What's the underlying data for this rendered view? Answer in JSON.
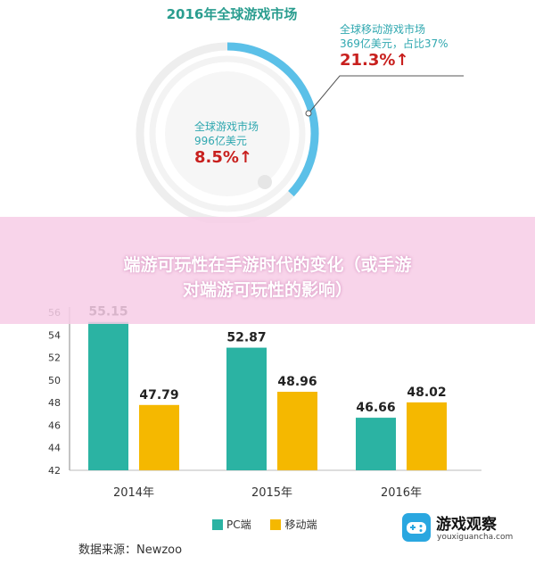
{
  "donut": {
    "title": "2016年全球游戏市场",
    "mobile": {
      "label": "全球移动游戏市场",
      "value": "369亿美元，占比37%",
      "growth": "21.3%↑",
      "share": 0.37
    },
    "global": {
      "label": "全球游戏市场",
      "value": "996亿美元",
      "growth": "8.5%↑"
    }
  },
  "overlay": {
    "title_line1": "端游可玩性在手游时代的变化（或手游",
    "title_line2": "对端游可玩性的影响）"
  },
  "chart_data": {
    "type": "bar",
    "categories": [
      "2014年",
      "2015年",
      "2016年"
    ],
    "series": [
      {
        "name": "PC端",
        "values": [
          55.15,
          52.87,
          46.66
        ],
        "labels": [
          "55.15",
          "52.87",
          "46.66"
        ],
        "color": "#2bb3a3"
      },
      {
        "name": "移动端",
        "values": [
          47.79,
          48.96,
          48.02
        ],
        "labels": [
          "47.79",
          "48.96",
          "48.02"
        ],
        "color": "#f5b800"
      }
    ],
    "yticks": [
      "56",
      "54",
      "52",
      "50",
      "48",
      "46",
      "44",
      "42"
    ],
    "ylim": [
      42,
      56
    ],
    "grid": false,
    "legend": "bottom-center"
  },
  "source": "数据来源：Newzoo",
  "logo": {
    "name": "游戏观察",
    "url": "youxiguancha.com"
  },
  "colors": {
    "teal": "#2bb3a3",
    "yellow": "#f5b800",
    "red": "#c8201e",
    "ring": "#5bc0e8"
  }
}
